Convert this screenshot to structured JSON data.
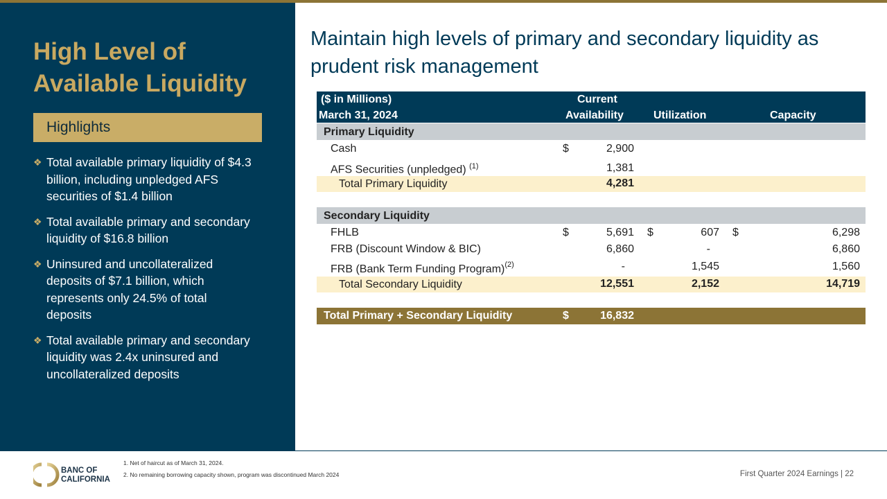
{
  "left": {
    "title_line1": "High Level of",
    "title_line2": "Available Liquidity",
    "highlights_label": "Highlights",
    "bullets": [
      "Total available primary liquidity of $4.3 billion, including unpledged AFS securities of $1.4 billion",
      "Total available primary and secondary liquidity of $16.8 billion",
      "Uninsured and uncollateralized deposits of $7.1 billion, which represents only 24.5% of total deposits",
      "Total available primary and secondary liquidity was 2.4x uninsured and uncollateralized deposits"
    ]
  },
  "title": "Maintain high levels of primary and secondary liquidity as prudent risk management",
  "table": {
    "h_units": "($ in Millions)",
    "h_date": "March 31, 2024",
    "h_current": "Current",
    "h_availability": "Availability",
    "h_utilization": "Utilization",
    "h_capacity": "Capacity",
    "primary_label": "Primary Liquidity",
    "cash": {
      "label": "Cash",
      "cur": "$",
      "avail": "2,900"
    },
    "afs": {
      "label": "AFS Securities (unpledged)",
      "note": "(1)",
      "avail": "1,381"
    },
    "total_primary": {
      "label": "Total Primary Liquidity",
      "avail": "4,281"
    },
    "secondary_label": "Secondary Liquidity",
    "fhlb": {
      "label": "FHLB",
      "cur": "$",
      "avail": "5,691",
      "util": "607",
      "cap": "6,298"
    },
    "frb": {
      "label": "FRB (Discount Window & BIC)",
      "avail": "6,860",
      "util": "-",
      "cap": "6,860"
    },
    "btfp": {
      "label": "FRB (Bank Term Funding Program)",
      "note": "(2)",
      "avail": "-",
      "util": "1,545",
      "cap": "1,560"
    },
    "total_secondary": {
      "label": "Total Secondary Liquidity",
      "avail": "12,551",
      "util": "2,152",
      "cap": "14,719"
    },
    "grand": {
      "label": "Total Primary + Secondary Liquidity",
      "cur": "$",
      "avail": "16,832"
    }
  },
  "footnotes": [
    "1.  Net of haircut as of March 31, 2024.",
    "2.  No remaining borrowing capacity shown, program was discontinued March 2024"
  ],
  "logo": {
    "line1": "BANC OF",
    "line2": "CALIFORNIA"
  },
  "page": "First Quarter 2024 Earnings |  22"
}
